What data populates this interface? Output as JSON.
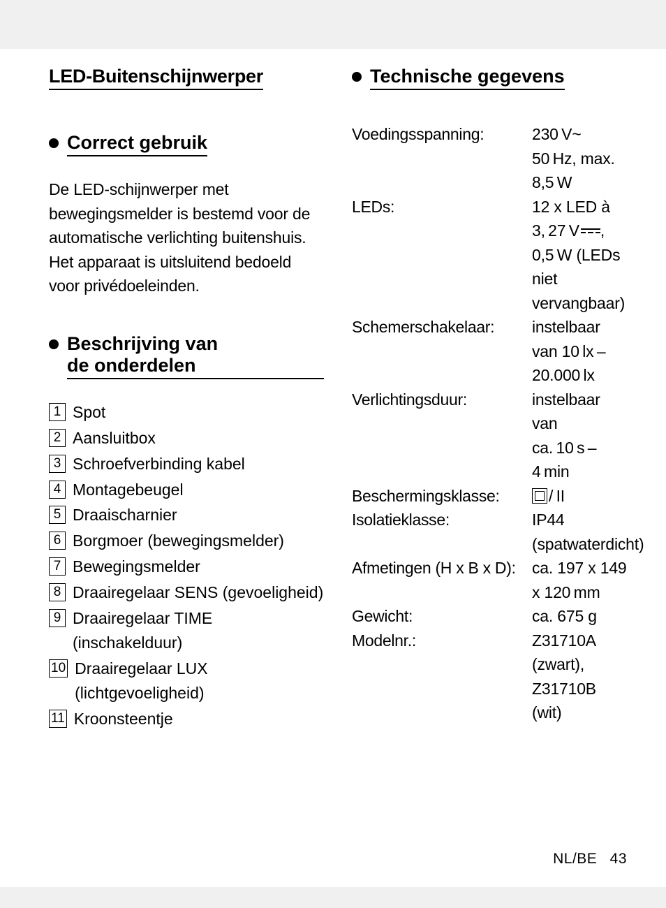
{
  "page": {
    "locale": "NL/BE",
    "number": "43",
    "background_color": "#f0f0f0",
    "sheet_color": "#ffffff",
    "text_color": "#000000"
  },
  "main_title": "LED-Buitenschijnwerper",
  "section_correct": {
    "heading": "Correct gebruik",
    "body": "De LED-schijnwerper met bewegingsmelder is bestemd voor de automatische verlichting buitenshuis. Het apparaat is uitsluitend bedoeld voor privédoeleinden."
  },
  "section_parts": {
    "heading": "Beschrijving van de onderdelen",
    "items": [
      {
        "n": "1",
        "label": "Spot"
      },
      {
        "n": "2",
        "label": "Aansluitbox"
      },
      {
        "n": "3",
        "label": "Schroefverbinding kabel"
      },
      {
        "n": "4",
        "label": "Montagebeugel"
      },
      {
        "n": "5",
        "label": "Draaischarnier"
      },
      {
        "n": "6",
        "label": "Borgmoer (bewegingsmelder)"
      },
      {
        "n": "7",
        "label": "Bewegingsmelder"
      },
      {
        "n": "8",
        "label": "Draairegelaar SENS (gevoeligheid)"
      },
      {
        "n": "9",
        "label": "Draairegelaar TIME (inschakelduur)"
      },
      {
        "n": "10",
        "label": "Draairegelaar LUX (lichtgevoeligheid)"
      },
      {
        "n": "11",
        "label": "Kroonsteentje"
      }
    ]
  },
  "section_tech": {
    "heading": "Technische gegevens",
    "rows": [
      {
        "label": "Voedingsspanning:",
        "value": "230 V~ 50 Hz, max. 8,5 W",
        "type": "text"
      },
      {
        "label": "LEDs:",
        "value_pre": "12 x LED à 3, 27 V",
        "value_post": ", 0,5 W (LEDs niet vervangbaar)",
        "type": "dc"
      },
      {
        "label": "Schemerschakelaar:",
        "value": "instelbaar van 10 lx – 20.000 lx",
        "type": "text"
      },
      {
        "label": "Verlichtingsduur:",
        "value": "instelbaar van ca. 10 s – 4 min",
        "type": "text"
      },
      {
        "label": "Beschermingsklasse:",
        "value_post": "/ II",
        "type": "class2"
      },
      {
        "label": "Isolatieklasse:",
        "value": "IP44 (spatwaterdicht)",
        "type": "text"
      },
      {
        "label": "Afmetingen (H x B x D):",
        "value": "ca. 197 x 149 x 120 mm",
        "type": "text"
      },
      {
        "label": "Gewicht:",
        "value": "ca. 675  g",
        "type": "text"
      },
      {
        "label": "Modelnr.:",
        "value": "Z31710A (zwart), Z31710B (wit)",
        "type": "text"
      }
    ]
  }
}
